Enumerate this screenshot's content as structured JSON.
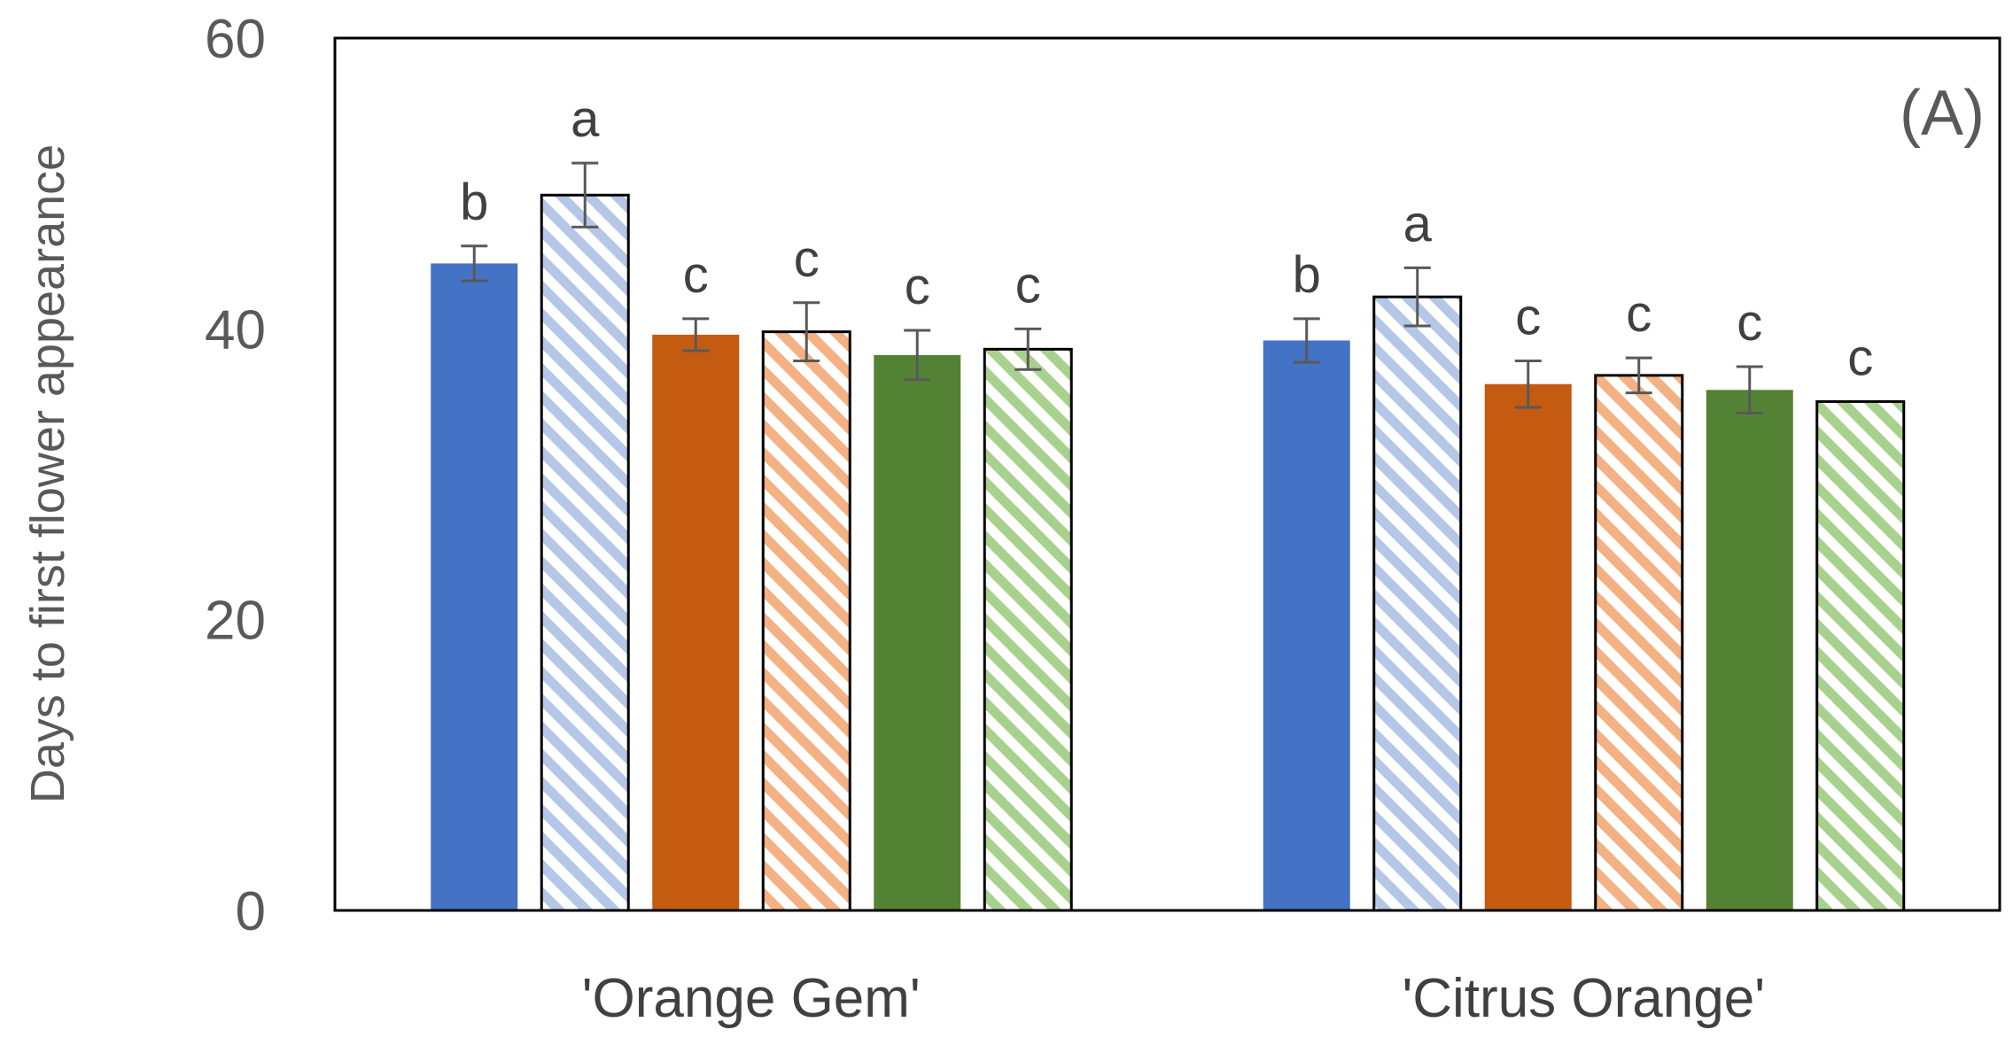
{
  "chart_data": {
    "type": "bar",
    "title": "",
    "panel_label": "(A)",
    "ylabel": "Days to first flower appearance",
    "xlabel": "",
    "ylim": [
      0,
      60
    ],
    "yticks": [
      0,
      20,
      40,
      60
    ],
    "legend": "none",
    "grid": false,
    "categories": [
      "'Orange Gem'",
      "'Citrus Orange'"
    ],
    "series": [
      {
        "name": "blue solid",
        "color": "#4472C4",
        "pattern": "solid",
        "values": [
          44.5,
          39.2
        ],
        "errors": [
          1.2,
          1.5
        ],
        "letters": [
          "b",
          "b"
        ]
      },
      {
        "name": "blue hatched",
        "color": "#B4C7E7",
        "pattern": "hatched",
        "values": [
          49.2,
          42.2
        ],
        "errors": [
          2.2,
          2.0
        ],
        "letters": [
          "a",
          "a"
        ]
      },
      {
        "name": "orange solid",
        "color": "#C55A11",
        "pattern": "solid",
        "values": [
          39.6,
          36.2
        ],
        "errors": [
          1.1,
          1.6
        ],
        "letters": [
          "c",
          "c"
        ]
      },
      {
        "name": "orange hatched",
        "color": "#F4B183",
        "pattern": "hatched",
        "values": [
          39.8,
          36.8
        ],
        "errors": [
          2.0,
          1.2
        ],
        "letters": [
          "c",
          "c"
        ]
      },
      {
        "name": "green solid",
        "color": "#548235",
        "pattern": "solid",
        "values": [
          38.2,
          35.8
        ],
        "errors": [
          1.7,
          1.6
        ],
        "letters": [
          "c",
          "c"
        ]
      },
      {
        "name": "green hatched",
        "color": "#A9D18E",
        "pattern": "hatched",
        "values": [
          38.6,
          35.0
        ],
        "errors": [
          1.4,
          0
        ],
        "letters": [
          "c",
          "c"
        ]
      }
    ]
  }
}
